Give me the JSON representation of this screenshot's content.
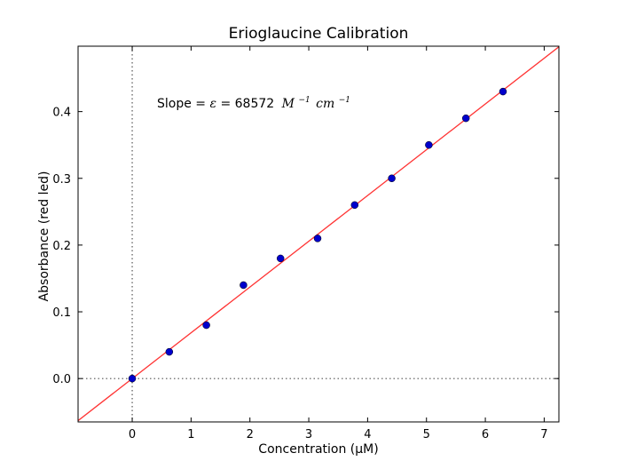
{
  "chart_data": {
    "type": "scatter",
    "title": "Erioglaucine Calibration",
    "xlabel": "Concentration (μM)",
    "ylabel": "Absorbance (red led)",
    "xlim": [
      -0.92,
      7.25
    ],
    "ylim": [
      -0.065,
      0.498
    ],
    "x_ticks": [
      0,
      1,
      2,
      3,
      4,
      5,
      6,
      7
    ],
    "y_ticks": [
      0.0,
      0.1,
      0.2,
      0.3,
      0.4
    ],
    "x_tick_labels": [
      "0",
      "1",
      "2",
      "3",
      "4",
      "5",
      "6",
      "7"
    ],
    "y_tick_labels": [
      "0.0",
      "0.1",
      "0.2",
      "0.3",
      "0.4"
    ],
    "series": [
      {
        "kind": "points",
        "color": "#0000cc",
        "x": [
          0,
          0.63,
          1.26,
          1.89,
          2.52,
          3.15,
          3.78,
          4.41,
          5.04,
          5.67,
          6.3
        ],
        "y": [
          0.0,
          0.04,
          0.08,
          0.14,
          0.18,
          0.21,
          0.26,
          0.3,
          0.35,
          0.39,
          0.43
        ]
      },
      {
        "kind": "fit-line",
        "color": "#ff3333",
        "slope": 0.068572,
        "intercept": 0
      }
    ],
    "reference_lines": {
      "x": 0,
      "y": 0,
      "style": "dotted",
      "color": "#555555"
    },
    "annotation": {
      "prefix": "Slope = ",
      "symbol": "ε",
      "equals": " = ",
      "value": "68572",
      "unit_M": "M",
      "unit_M_exp": "−1",
      "unit_cm": "cm",
      "unit_cm_exp": "−1"
    },
    "grid": false
  }
}
